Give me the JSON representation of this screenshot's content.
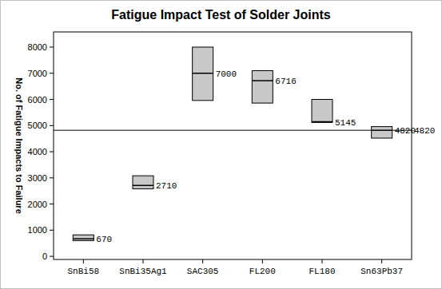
{
  "chart_data": {
    "type": "box",
    "title": "Fatigue Impact Test of Solder Joints",
    "y_label": "No. of Fatigue Impacts to Failure",
    "categories": [
      "SnBi58",
      "SnBi35Ag1",
      "SAC305",
      "FL200",
      "FL180",
      "Sn63Pb37"
    ],
    "values": [
      670,
      2710,
      7000,
      6716,
      5145,
      4820
    ],
    "low": [
      600,
      2580,
      5960,
      5860,
      5120,
      4520
    ],
    "high": [
      820,
      3080,
      8000,
      7100,
      6000,
      4960
    ],
    "reference_line": 4820,
    "color": "#c8c8c8",
    "data_labels": true,
    "ylim": [
      -120,
      8580
    ],
    "yticks": [
      0,
      1000,
      2000,
      3000,
      4000,
      5000,
      6000,
      7000,
      8000
    ],
    "grid": false
  }
}
